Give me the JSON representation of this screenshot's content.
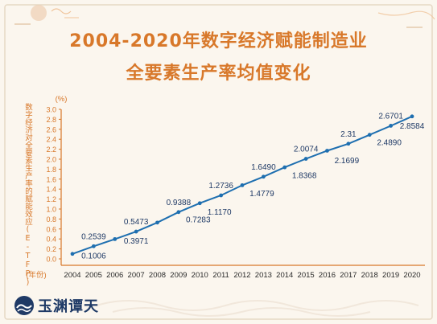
{
  "header": {
    "title_line1": "2004-2020年数字经济赋能制造业",
    "title_line2": "全要素生产率均值变化"
  },
  "brand": {
    "logo_text": "玉渊谭天"
  },
  "colors": {
    "accent": "#d8782a",
    "line": "#1e6fb0",
    "text": "#1f3a66",
    "background": "#fbf6ee"
  },
  "chart_data": {
    "type": "line",
    "ylabel": "数字经济对全要素生产率的赋能效应(E-TFP)",
    "yunit": "(%)",
    "xunit": "(年份)",
    "ylim": [
      0,
      3.0
    ],
    "yticks": [
      "0.0",
      "0.2",
      "0.4",
      "0.6",
      "0.8",
      "1.0",
      "1.2",
      "1.4",
      "1.6",
      "1.8",
      "2.0",
      "2.2",
      "2.4",
      "2.6",
      "2.8",
      "3.0"
    ],
    "x": [
      "2004",
      "2005",
      "2006",
      "2007",
      "2008",
      "2009",
      "2010",
      "2011",
      "2012",
      "2013",
      "2014",
      "2015",
      "2016",
      "2017",
      "2018",
      "2019",
      "2020"
    ],
    "series": [
      {
        "values": [
          0.1006,
          0.2539,
          0.3971,
          0.5473,
          0.7283,
          0.9388,
          1.117,
          1.2736,
          1.4779,
          1.649,
          1.8368,
          2.0074,
          2.1699,
          2.31,
          2.489,
          2.6701,
          2.8584
        ]
      }
    ],
    "point_labels": [
      "",
      "0.2539",
      "0.1006",
      "0.5473",
      "0.3971",
      "0.9388",
      "0.7283",
      "1.2736",
      "1.1170",
      "1.6490",
      "1.4779",
      "2.0074",
      "1.8368",
      "2.31",
      "2.1699",
      "2.6701",
      "2.4890",
      "2.8584"
    ],
    "labels": [
      {
        "text": "0.2539",
        "index": 1,
        "pos": "above"
      },
      {
        "text": "0.1006",
        "index": 1,
        "pos": "below"
      },
      {
        "text": "0.5473",
        "index": 3,
        "pos": "above"
      },
      {
        "text": "0.3971",
        "index": 3,
        "pos": "below"
      },
      {
        "text": "0.9388",
        "index": 5,
        "pos": "above"
      },
      {
        "text": "0.7283",
        "index": 6,
        "pos": "below-left"
      },
      {
        "text": "1.2736",
        "index": 7,
        "pos": "above"
      },
      {
        "text": "1.1170",
        "index": 7,
        "pos": "below-left"
      },
      {
        "text": "1.6490",
        "index": 9,
        "pos": "above"
      },
      {
        "text": "1.4779",
        "index": 9,
        "pos": "below-left"
      },
      {
        "text": "2.0074",
        "index": 11,
        "pos": "above"
      },
      {
        "text": "1.8368",
        "index": 11,
        "pos": "below-left"
      },
      {
        "text": "2.31",
        "index": 13,
        "pos": "above"
      },
      {
        "text": "2.1699",
        "index": 13,
        "pos": "below-left"
      },
      {
        "text": "2.6701",
        "index": 15,
        "pos": "above"
      },
      {
        "text": "2.4890",
        "index": 15,
        "pos": "below-left"
      },
      {
        "text": "2.8584",
        "index": 16,
        "pos": "below"
      }
    ]
  }
}
